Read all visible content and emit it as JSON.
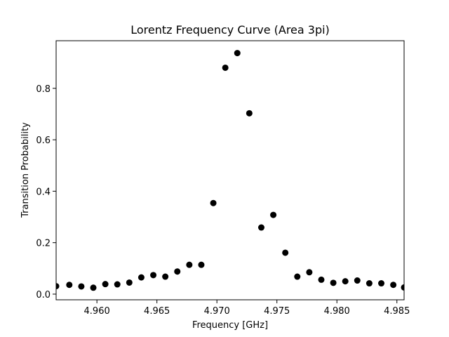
{
  "chart_data": {
    "type": "scatter",
    "title": "Lorentz Frequency Curve (Area 3pi)",
    "xlabel": "Frequency [GHz]",
    "ylabel": "Transition Probability",
    "xlim": [
      4.9566,
      4.9856
    ],
    "ylim": [
      -0.022,
      0.985
    ],
    "x_ticks": [
      "4.960",
      "4.965",
      "4.970",
      "4.975",
      "4.980",
      "4.985"
    ],
    "x_tick_values": [
      4.96,
      4.965,
      4.97,
      4.975,
      4.98,
      4.985
    ],
    "y_ticks": [
      "0.0",
      "0.2",
      "0.4",
      "0.6",
      "0.8"
    ],
    "y_tick_values": [
      0.0,
      0.2,
      0.4,
      0.6,
      0.8
    ],
    "grid": false,
    "marker_color": "#000000",
    "series": [
      {
        "x": [
          4.9566,
          4.9577,
          4.9587,
          4.9597,
          4.9607,
          4.9617,
          4.9627,
          4.9637,
          4.9647,
          4.9657,
          4.9667,
          4.9677,
          4.9687,
          4.9697,
          4.9707,
          4.9717,
          4.9727,
          4.9737,
          4.9747,
          4.9757,
          4.9767,
          4.9777,
          4.9787,
          4.9797,
          4.9807,
          4.9817,
          4.9827,
          4.9837,
          4.9847,
          4.9856
        ],
        "y": [
          0.031,
          0.036,
          0.03,
          0.025,
          0.039,
          0.038,
          0.045,
          0.065,
          0.074,
          0.068,
          0.088,
          0.114,
          0.114,
          0.354,
          0.88,
          0.937,
          0.703,
          0.259,
          0.308,
          0.161,
          0.068,
          0.085,
          0.056,
          0.044,
          0.05,
          0.053,
          0.042,
          0.042,
          0.036,
          0.026
        ]
      }
    ]
  }
}
